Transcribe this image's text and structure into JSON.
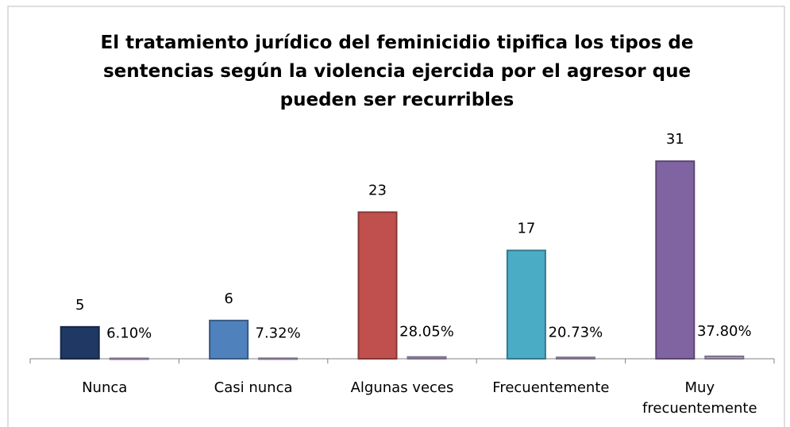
{
  "chart_data": {
    "type": "bar",
    "title": "El tratamiento jurídico del feminicidio tipifica los tipos de sentencias según la violencia ejercida por el agresor que pueden ser recurribles",
    "categories": [
      "Nunca",
      "Casi nunca",
      "Algunas veces",
      "Frecuentemente",
      "Muy frecuentemente"
    ],
    "series": [
      {
        "colors": [
          "#1f3864",
          "#4f81bd",
          "#c0504d",
          "#4bacc6",
          "#8064a2"
        ],
        "values": [
          5,
          6,
          23,
          17,
          31
        ]
      },
      {
        "color": "#b3a2c7",
        "values": [
          0.061,
          0.0732,
          0.2805,
          0.2073,
          0.378
        ],
        "value_labels": [
          "6.10%",
          "7.32%",
          "28.05%",
          "20.73%",
          "37.80%"
        ]
      }
    ],
    "ylim": [
      0,
      35
    ]
  }
}
